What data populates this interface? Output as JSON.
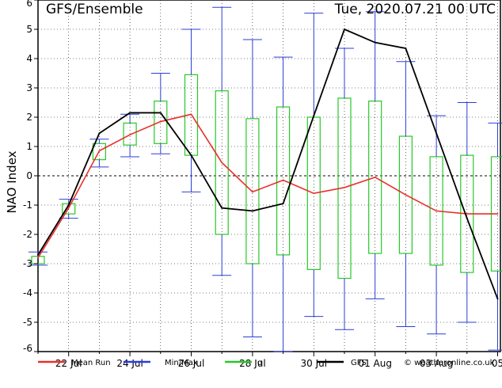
{
  "chart_data": {
    "type": "line",
    "title": "GFS/Ensemble",
    "run_time": "Tue, 2020.07.21   00 UTC",
    "ylabel": "NAO Index",
    "xlabel": "",
    "ylim": [
      -6,
      6
    ],
    "yticks": [
      -6,
      -5,
      -4,
      -3,
      -2,
      -1,
      0,
      1,
      2,
      3,
      4,
      5,
      6
    ],
    "xticks": [
      "22 Jul",
      "24 Jul",
      "26 Jul",
      "28 Jul",
      "30 Jul",
      "01 Aug",
      "03 Aug",
      "05"
    ],
    "x": [
      "2020-07-21",
      "2020-07-22",
      "2020-07-23",
      "2020-07-24",
      "2020-07-25",
      "2020-07-26",
      "2020-07-27",
      "2020-07-28",
      "2020-07-29",
      "2020-07-30",
      "2020-07-31",
      "2020-08-01",
      "2020-08-02",
      "2020-08-03",
      "2020-08-04",
      "2020-08-05"
    ],
    "grid": true,
    "legend_position": "bottom",
    "series": [
      {
        "name": "Mean Run",
        "color": "#e8302c",
        "values": [
          -2.8,
          -1.1,
          0.85,
          1.4,
          1.85,
          2.1,
          0.45,
          -0.55,
          -0.15,
          -0.6,
          -0.4,
          -0.05,
          -0.65,
          -1.2,
          -1.3,
          -1.3
        ]
      },
      {
        "name": "Min/Max",
        "color": "#2b3ed8",
        "min": [
          -3.05,
          -1.45,
          0.3,
          0.65,
          0.75,
          -0.55,
          -3.4,
          -5.5,
          -6.0,
          -4.8,
          -5.25,
          -4.2,
          -5.15,
          -5.4,
          -5.0,
          -5.95
        ],
        "max": [
          -2.6,
          -0.8,
          1.25,
          2.1,
          3.5,
          5.0,
          5.75,
          4.65,
          4.05,
          5.55,
          4.35,
          5.6,
          3.9,
          2.05,
          2.5,
          1.8
        ]
      },
      {
        "name": "σ",
        "color": "#28c828",
        "low": [
          -3.0,
          -1.3,
          0.55,
          1.05,
          1.1,
          0.7,
          -2.0,
          -3.0,
          -2.7,
          -3.2,
          -3.5,
          -2.65,
          -2.65,
          -3.05,
          -3.3,
          -3.25
        ],
        "high": [
          -2.75,
          -0.95,
          1.1,
          1.8,
          2.55,
          3.45,
          2.9,
          1.95,
          2.35,
          2.0,
          2.65,
          2.55,
          1.35,
          0.65,
          0.7,
          0.65
        ]
      },
      {
        "name": "GFS",
        "color": "#000000",
        "values": [
          -2.7,
          -1.0,
          1.45,
          2.15,
          2.15,
          0.7,
          -1.1,
          -1.2,
          -0.95,
          2.05,
          5.0,
          4.55,
          4.35,
          1.45,
          -1.45,
          -4.2
        ]
      }
    ],
    "credit": "© weatheronline.co.uk"
  }
}
